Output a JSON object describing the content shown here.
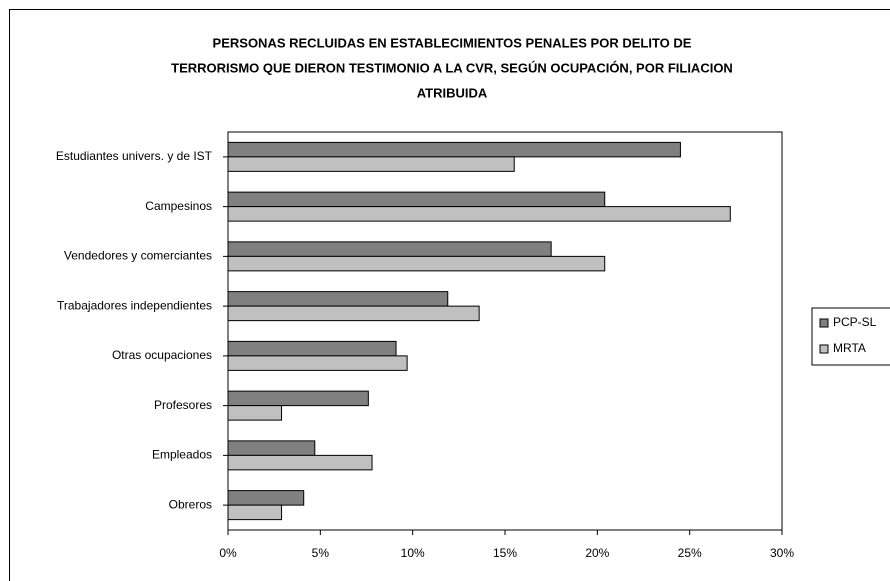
{
  "chart_data": {
    "type": "barh",
    "title": [
      "PERSONAS RECLUIDAS EN ESTABLECIMIENTOS PENALES POR DELITO DE",
      "TERRORISMO QUE DIERON TESTIMONIO A LA CVR, SEGÚN OCUPACIÓN, POR FILIACION",
      "ATRIBUIDA"
    ],
    "categories": [
      "Estudiantes univers. y de IST",
      "Campesinos",
      "Vendedores y comerciantes",
      "Trabajadores independientes",
      "Otras ocupaciones",
      "Profesores",
      "Empleados",
      "Obreros"
    ],
    "series": [
      {
        "name": "PCP-SL",
        "color": "#808080",
        "values": [
          24.5,
          20.4,
          17.5,
          11.9,
          9.1,
          7.6,
          4.7,
          4.1
        ]
      },
      {
        "name": "MRTA",
        "color": "#c0c0c0",
        "values": [
          15.5,
          27.2,
          20.4,
          13.6,
          9.7,
          2.9,
          7.8,
          2.9
        ]
      }
    ],
    "xlim": [
      0,
      30
    ],
    "xticks": [
      {
        "value": 0,
        "label": "0%"
      },
      {
        "value": 5,
        "label": "5%"
      },
      {
        "value": 10,
        "label": "10%"
      },
      {
        "value": 15,
        "label": "15%"
      },
      {
        "value": 20,
        "label": "20%"
      },
      {
        "value": 25,
        "label": "25%"
      },
      {
        "value": 30,
        "label": "30%"
      }
    ],
    "grid": false,
    "legend": "right"
  }
}
